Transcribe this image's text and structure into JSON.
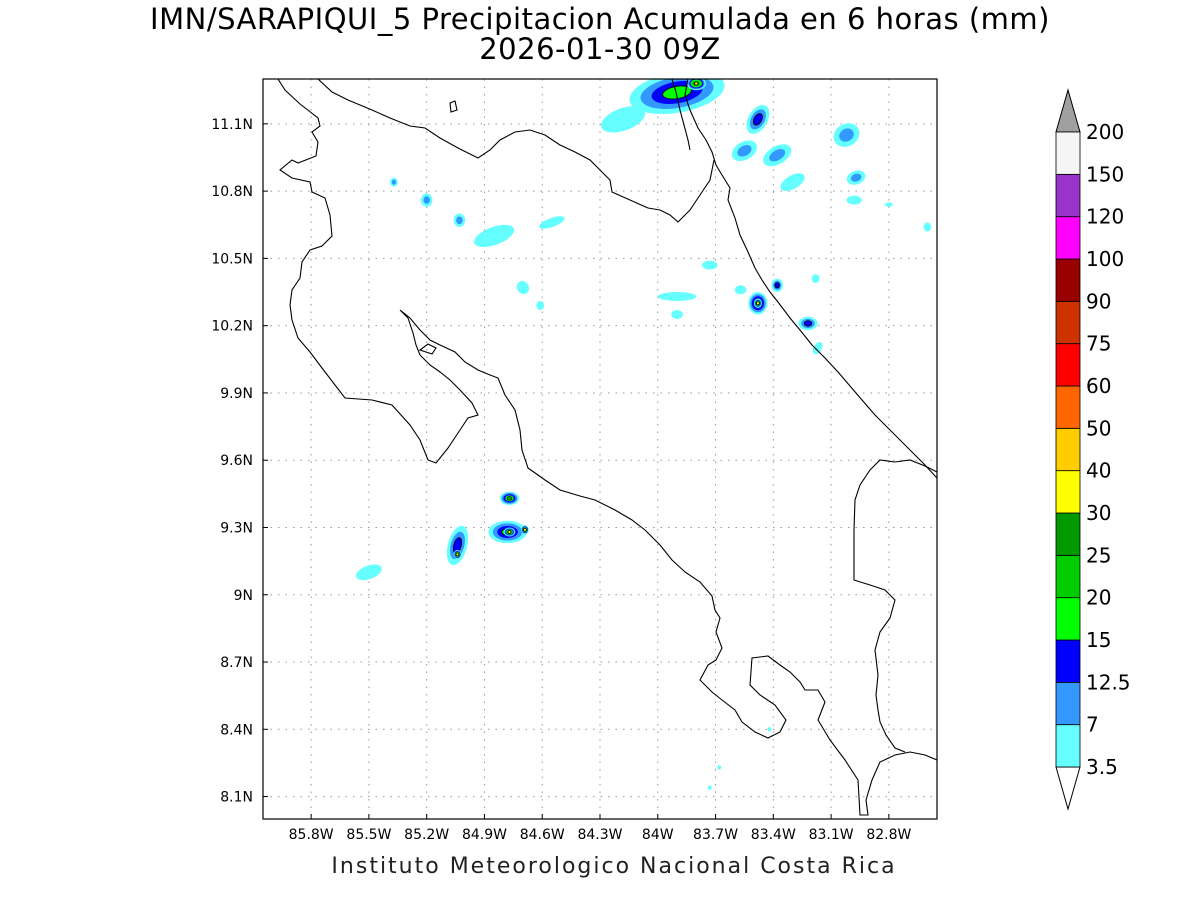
{
  "title_line1": "IMN/SARAPIQUI_5 Precipitacion Acumulada en 6 horas (mm)",
  "title_line2": "2026-01-30 09Z",
  "footer": "Instituto Meteorologico Nacional Costa Rica",
  "map": {
    "lon_range": [
      -86.05,
      -82.55
    ],
    "lat_range": [
      8.0,
      11.3
    ],
    "lon_ticks": [
      {
        "v": -85.8,
        "label": "85.8W"
      },
      {
        "v": -85.5,
        "label": "85.5W"
      },
      {
        "v": -85.2,
        "label": "85.2W"
      },
      {
        "v": -84.9,
        "label": "84.9W"
      },
      {
        "v": -84.6,
        "label": "84.6W"
      },
      {
        "v": -84.3,
        "label": "84.3W"
      },
      {
        "v": -84.0,
        "label": "84W"
      },
      {
        "v": -83.7,
        "label": "83.7W"
      },
      {
        "v": -83.4,
        "label": "83.4W"
      },
      {
        "v": -83.1,
        "label": "83.1W"
      },
      {
        "v": -82.8,
        "label": "82.8W"
      }
    ],
    "lat_ticks": [
      {
        "v": 8.1,
        "label": "8.1N"
      },
      {
        "v": 8.4,
        "label": "8.4N"
      },
      {
        "v": 8.7,
        "label": "8.7N"
      },
      {
        "v": 9.0,
        "label": "9N"
      },
      {
        "v": 9.3,
        "label": "9.3N"
      },
      {
        "v": 9.6,
        "label": "9.6N"
      },
      {
        "v": 9.9,
        "label": "9.9N"
      },
      {
        "v": 10.2,
        "label": "10.2N"
      },
      {
        "v": 10.5,
        "label": "10.5N"
      },
      {
        "v": 10.8,
        "label": "10.8N"
      },
      {
        "v": 11.1,
        "label": "11.1N"
      }
    ],
    "grid": true
  },
  "colorbar": {
    "levels": [
      "3.5",
      "7",
      "12.5",
      "15",
      "20",
      "25",
      "30",
      "40",
      "50",
      "60",
      "75",
      "90",
      "100",
      "120",
      "150",
      "200"
    ],
    "colors": [
      "#66ffff",
      "#3399ff",
      "#0000ff",
      "#00ff00",
      "#00cc00",
      "#009900",
      "#ffff00",
      "#ffcc00",
      "#ff6600",
      "#ff0000",
      "#cc3300",
      "#990000",
      "#ff00ff",
      "#9933cc",
      "#f5f5f5"
    ],
    "top_color": "#a0a0a0",
    "bottom_color": "#ffffff"
  },
  "precip_cells": [
    {
      "lon": -83.9,
      "lat": 11.24,
      "rx": 0.25,
      "ry": 0.09,
      "rot": -10,
      "c": 3
    },
    {
      "lon": -83.8,
      "lat": 11.28,
      "rx": 0.05,
      "ry": 0.03,
      "rot": 0,
      "c": 6
    },
    {
      "lon": -84.18,
      "lat": 11.12,
      "rx": 0.12,
      "ry": 0.05,
      "rot": -20,
      "c": 0
    },
    {
      "lon": -83.48,
      "lat": 11.12,
      "rx": 0.05,
      "ry": 0.07,
      "rot": 30,
      "c": 2
    },
    {
      "lon": -83.38,
      "lat": 10.96,
      "rx": 0.08,
      "ry": 0.04,
      "rot": -30,
      "c": 1
    },
    {
      "lon": -83.55,
      "lat": 10.98,
      "rx": 0.07,
      "ry": 0.04,
      "rot": -30,
      "c": 1
    },
    {
      "lon": -83.02,
      "lat": 11.05,
      "rx": 0.07,
      "ry": 0.05,
      "rot": -30,
      "c": 1
    },
    {
      "lon": -82.97,
      "lat": 10.86,
      "rx": 0.05,
      "ry": 0.03,
      "rot": -20,
      "c": 1
    },
    {
      "lon": -83.3,
      "lat": 10.84,
      "rx": 0.07,
      "ry": 0.03,
      "rot": -30,
      "c": 0
    },
    {
      "lon": -82.98,
      "lat": 10.76,
      "rx": 0.04,
      "ry": 0.02,
      "rot": 0,
      "c": 0
    },
    {
      "lon": -82.8,
      "lat": 10.74,
      "rx": 0.02,
      "ry": 0.01,
      "rot": 0,
      "c": 0
    },
    {
      "lon": -82.6,
      "lat": 10.64,
      "rx": 0.02,
      "ry": 0.02,
      "rot": 0,
      "c": 0
    },
    {
      "lon": -83.48,
      "lat": 10.3,
      "rx": 0.05,
      "ry": 0.05,
      "rot": 0,
      "c": 4
    },
    {
      "lon": -83.48,
      "lat": 10.3,
      "rx": 0.02,
      "ry": 0.02,
      "rot": 0,
      "c": 6
    },
    {
      "lon": -83.38,
      "lat": 10.38,
      "rx": 0.03,
      "ry": 0.03,
      "rot": 0,
      "c": 2
    },
    {
      "lon": -83.22,
      "lat": 10.21,
      "rx": 0.05,
      "ry": 0.03,
      "rot": 0,
      "c": 2
    },
    {
      "lon": -83.17,
      "lat": 10.1,
      "rx": 0.02,
      "ry": 0.03,
      "rot": 30,
      "c": 0
    },
    {
      "lon": -83.9,
      "lat": 10.33,
      "rx": 0.1,
      "ry": 0.02,
      "rot": 0,
      "c": 0
    },
    {
      "lon": -83.57,
      "lat": 10.36,
      "rx": 0.03,
      "ry": 0.02,
      "rot": 0,
      "c": 0
    },
    {
      "lon": -83.9,
      "lat": 10.25,
      "rx": 0.03,
      "ry": 0.02,
      "rot": 0,
      "c": 0
    },
    {
      "lon": -83.73,
      "lat": 10.47,
      "rx": 0.04,
      "ry": 0.02,
      "rot": 0,
      "c": 0
    },
    {
      "lon": -83.18,
      "lat": 10.41,
      "rx": 0.02,
      "ry": 0.02,
      "rot": 0,
      "c": 0
    },
    {
      "lon": -85.2,
      "lat": 10.76,
      "rx": 0.03,
      "ry": 0.03,
      "rot": 0,
      "c": 1
    },
    {
      "lon": -85.37,
      "lat": 10.84,
      "rx": 0.02,
      "ry": 0.02,
      "rot": 0,
      "c": 1
    },
    {
      "lon": -85.03,
      "lat": 10.67,
      "rx": 0.03,
      "ry": 0.03,
      "rot": 0,
      "c": 1
    },
    {
      "lon": -84.85,
      "lat": 10.6,
      "rx": 0.11,
      "ry": 0.04,
      "rot": -20,
      "c": 0
    },
    {
      "lon": -84.55,
      "lat": 10.66,
      "rx": 0.07,
      "ry": 0.02,
      "rot": -20,
      "c": 0
    },
    {
      "lon": -84.7,
      "lat": 10.37,
      "rx": 0.03,
      "ry": 0.03,
      "rot": -30,
      "c": 0
    },
    {
      "lon": -84.61,
      "lat": 10.29,
      "rx": 0.02,
      "ry": 0.02,
      "rot": 0,
      "c": 0
    },
    {
      "lon": -84.78,
      "lat": 9.28,
      "rx": 0.1,
      "ry": 0.05,
      "rot": 0,
      "c": 3
    },
    {
      "lon": -84.77,
      "lat": 9.28,
      "rx": 0.03,
      "ry": 0.02,
      "rot": 0,
      "c": 6
    },
    {
      "lon": -84.69,
      "lat": 9.29,
      "rx": 0.02,
      "ry": 0.02,
      "rot": 0,
      "c": 6
    },
    {
      "lon": -84.77,
      "lat": 9.43,
      "rx": 0.05,
      "ry": 0.03,
      "rot": 0,
      "c": 4
    },
    {
      "lon": -85.04,
      "lat": 9.22,
      "rx": 0.05,
      "ry": 0.09,
      "rot": 15,
      "c": 2
    },
    {
      "lon": -85.04,
      "lat": 9.18,
      "rx": 0.02,
      "ry": 0.02,
      "rot": 0,
      "c": 6
    },
    {
      "lon": -85.5,
      "lat": 9.1,
      "rx": 0.07,
      "ry": 0.03,
      "rot": -20,
      "c": 0
    },
    {
      "lon": -83.68,
      "lat": 8.23,
      "rx": 0.01,
      "ry": 0.01,
      "rot": 0,
      "c": 0
    },
    {
      "lon": -83.73,
      "lat": 8.14,
      "rx": 0.01,
      "ry": 0.01,
      "rot": 0,
      "c": 0
    },
    {
      "lon": -83.42,
      "lat": 8.4,
      "rx": 0.01,
      "ry": 0.01,
      "rot": 0,
      "c": 0
    }
  ]
}
